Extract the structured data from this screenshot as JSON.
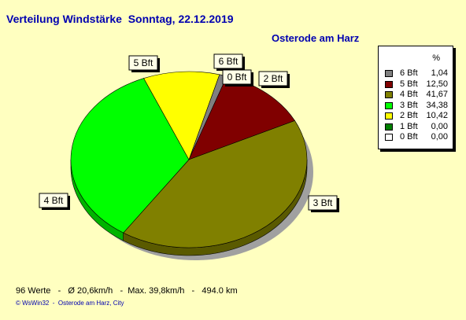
{
  "header": {
    "title": "Verteilung Windstärke  Sonntag, 22.12.2019",
    "location": "Osterode am Harz"
  },
  "legend": {
    "header": "%"
  },
  "footer": {
    "stats": "96 Werte   -   Ø 20,6km/h   -  Max. 39,8km/h   -   494.0 km",
    "credit": "© WsWin32  -  Osterode am Harz, City"
  },
  "chart_data": {
    "type": "pie",
    "title": "Verteilung Windstärke  Sonntag, 22.12.2019",
    "slices": [
      {
        "label": "6 Bft",
        "value": 1.04,
        "value_text": "1,04",
        "color": "#808080"
      },
      {
        "label": "5 Bft",
        "value": 12.5,
        "value_text": "12,50",
        "color": "#800000"
      },
      {
        "label": "4 Bft",
        "value": 41.67,
        "value_text": "41,67",
        "color": "#808000"
      },
      {
        "label": "3 Bft",
        "value": 34.38,
        "value_text": "34,38",
        "color": "#00ff00"
      },
      {
        "label": "2 Bft",
        "value": 10.42,
        "value_text": "10,42",
        "color": "#ffff00"
      },
      {
        "label": "1 Bft",
        "value": 0.0,
        "value_text": "0,00",
        "color": "#008000"
      },
      {
        "label": "0 Bft",
        "value": 0.0,
        "value_text": "0,00",
        "color": "#ffffff"
      }
    ]
  }
}
